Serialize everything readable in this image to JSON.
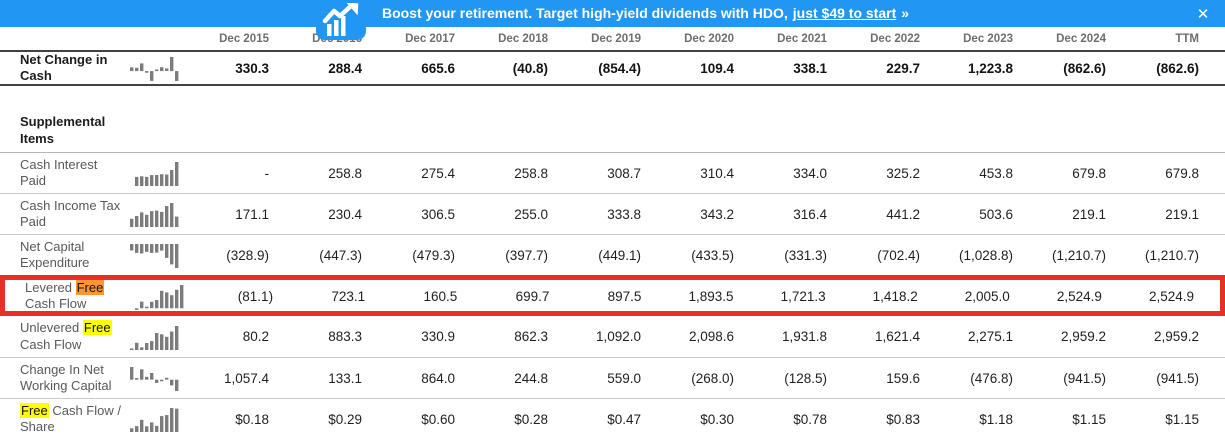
{
  "banner": {
    "text": "Boost your retirement. Target high-yield dividends with HDO,",
    "link_text": "just $49 to start",
    "suffix": "»",
    "close_glyph": "✕"
  },
  "colors": {
    "banner_blue": "#2196f3",
    "find_highlight_red": "#e53028",
    "search_highlight_yellow": "#ffff00",
    "search_highlight_orange": "#ff9632",
    "sparkline_gray": "#7c7c7c"
  },
  "section_header": "Supplemental Items",
  "table": {
    "columns": [
      "Dec 2015",
      "Dec 2016",
      "Dec 2017",
      "Dec 2018",
      "Dec 2019",
      "Dec 2020",
      "Dec 2021",
      "Dec 2022",
      "Dec 2023",
      "Dec 2024",
      "TTM"
    ],
    "rows": [
      {
        "id": "net-change-in-cash",
        "section": "main",
        "emphasis": true,
        "selected": false,
        "label_pre": "Net Change in Cash",
        "label_hl": "",
        "label_post": "",
        "highlight": "none",
        "values": [
          "330.3",
          "288.4",
          "665.6",
          "(40.8)",
          "(854.4)",
          "109.4",
          "338.1",
          "229.7",
          "1,223.8",
          "(862.6)",
          "(862.6)"
        ]
      },
      {
        "id": "cash-interest-paid",
        "section": "supplemental",
        "emphasis": false,
        "selected": false,
        "label_pre": "Cash Interest Paid",
        "label_hl": "",
        "label_post": "",
        "highlight": "none",
        "values": [
          "-",
          "258.8",
          "275.4",
          "258.8",
          "308.7",
          "310.4",
          "334.0",
          "325.2",
          "453.8",
          "679.8",
          "679.8"
        ]
      },
      {
        "id": "cash-income-tax-paid",
        "section": "supplemental",
        "emphasis": false,
        "selected": false,
        "label_pre": "Cash Income Tax Paid",
        "label_hl": "",
        "label_post": "",
        "highlight": "none",
        "values": [
          "171.1",
          "230.4",
          "306.5",
          "255.0",
          "333.8",
          "343.2",
          "316.4",
          "441.2",
          "503.6",
          "219.1",
          "219.1"
        ]
      },
      {
        "id": "net-capital-expenditure",
        "section": "supplemental",
        "emphasis": false,
        "selected": false,
        "label_pre": "Net Capital Expenditure",
        "label_hl": "",
        "label_post": "",
        "highlight": "none",
        "values": [
          "(328.9)",
          "(447.3)",
          "(479.3)",
          "(397.7)",
          "(449.1)",
          "(433.5)",
          "(331.3)",
          "(702.4)",
          "(1,028.8)",
          "(1,210.7)",
          "(1,210.7)"
        ]
      },
      {
        "id": "levered-free-cash-flow",
        "section": "supplemental",
        "emphasis": false,
        "selected": true,
        "label_pre": "Levered ",
        "label_hl": "Free",
        "label_post": " Cash Flow",
        "highlight": "orange",
        "values": [
          "(81.1)",
          "723.1",
          "160.5",
          "699.7",
          "897.5",
          "1,893.5",
          "1,721.3",
          "1,418.2",
          "2,005.0",
          "2,524.9",
          "2,524.9"
        ]
      },
      {
        "id": "unlevered-free-cash-flow",
        "section": "supplemental",
        "emphasis": false,
        "selected": false,
        "label_pre": "Unlevered ",
        "label_hl": "Free",
        "label_post": " Cash Flow",
        "highlight": "yellow",
        "values": [
          "80.2",
          "883.3",
          "330.9",
          "862.3",
          "1,092.0",
          "2,098.6",
          "1,931.8",
          "1,621.4",
          "2,275.1",
          "2,959.2",
          "2,959.2"
        ]
      },
      {
        "id": "change-in-net-working-capital",
        "section": "supplemental",
        "emphasis": false,
        "selected": false,
        "label_pre": "Change In Net Working Capital",
        "label_hl": "",
        "label_post": "",
        "highlight": "none",
        "values": [
          "1,057.4",
          "133.1",
          "864.0",
          "244.8",
          "559.0",
          "(268.0)",
          "(128.5)",
          "159.6",
          "(476.8)",
          "(941.5)",
          "(941.5)"
        ]
      },
      {
        "id": "free-cash-flow-per-share",
        "section": "supplemental",
        "emphasis": false,
        "selected": false,
        "label_pre": "",
        "label_hl": "Free",
        "label_post": " Cash Flow / Share",
        "highlight": "yellow",
        "values": [
          "$0.18",
          "$0.29",
          "$0.60",
          "$0.28",
          "$0.47",
          "$0.30",
          "$0.78",
          "$0.83",
          "$1.18",
          "$1.15",
          "$1.15"
        ]
      }
    ]
  }
}
